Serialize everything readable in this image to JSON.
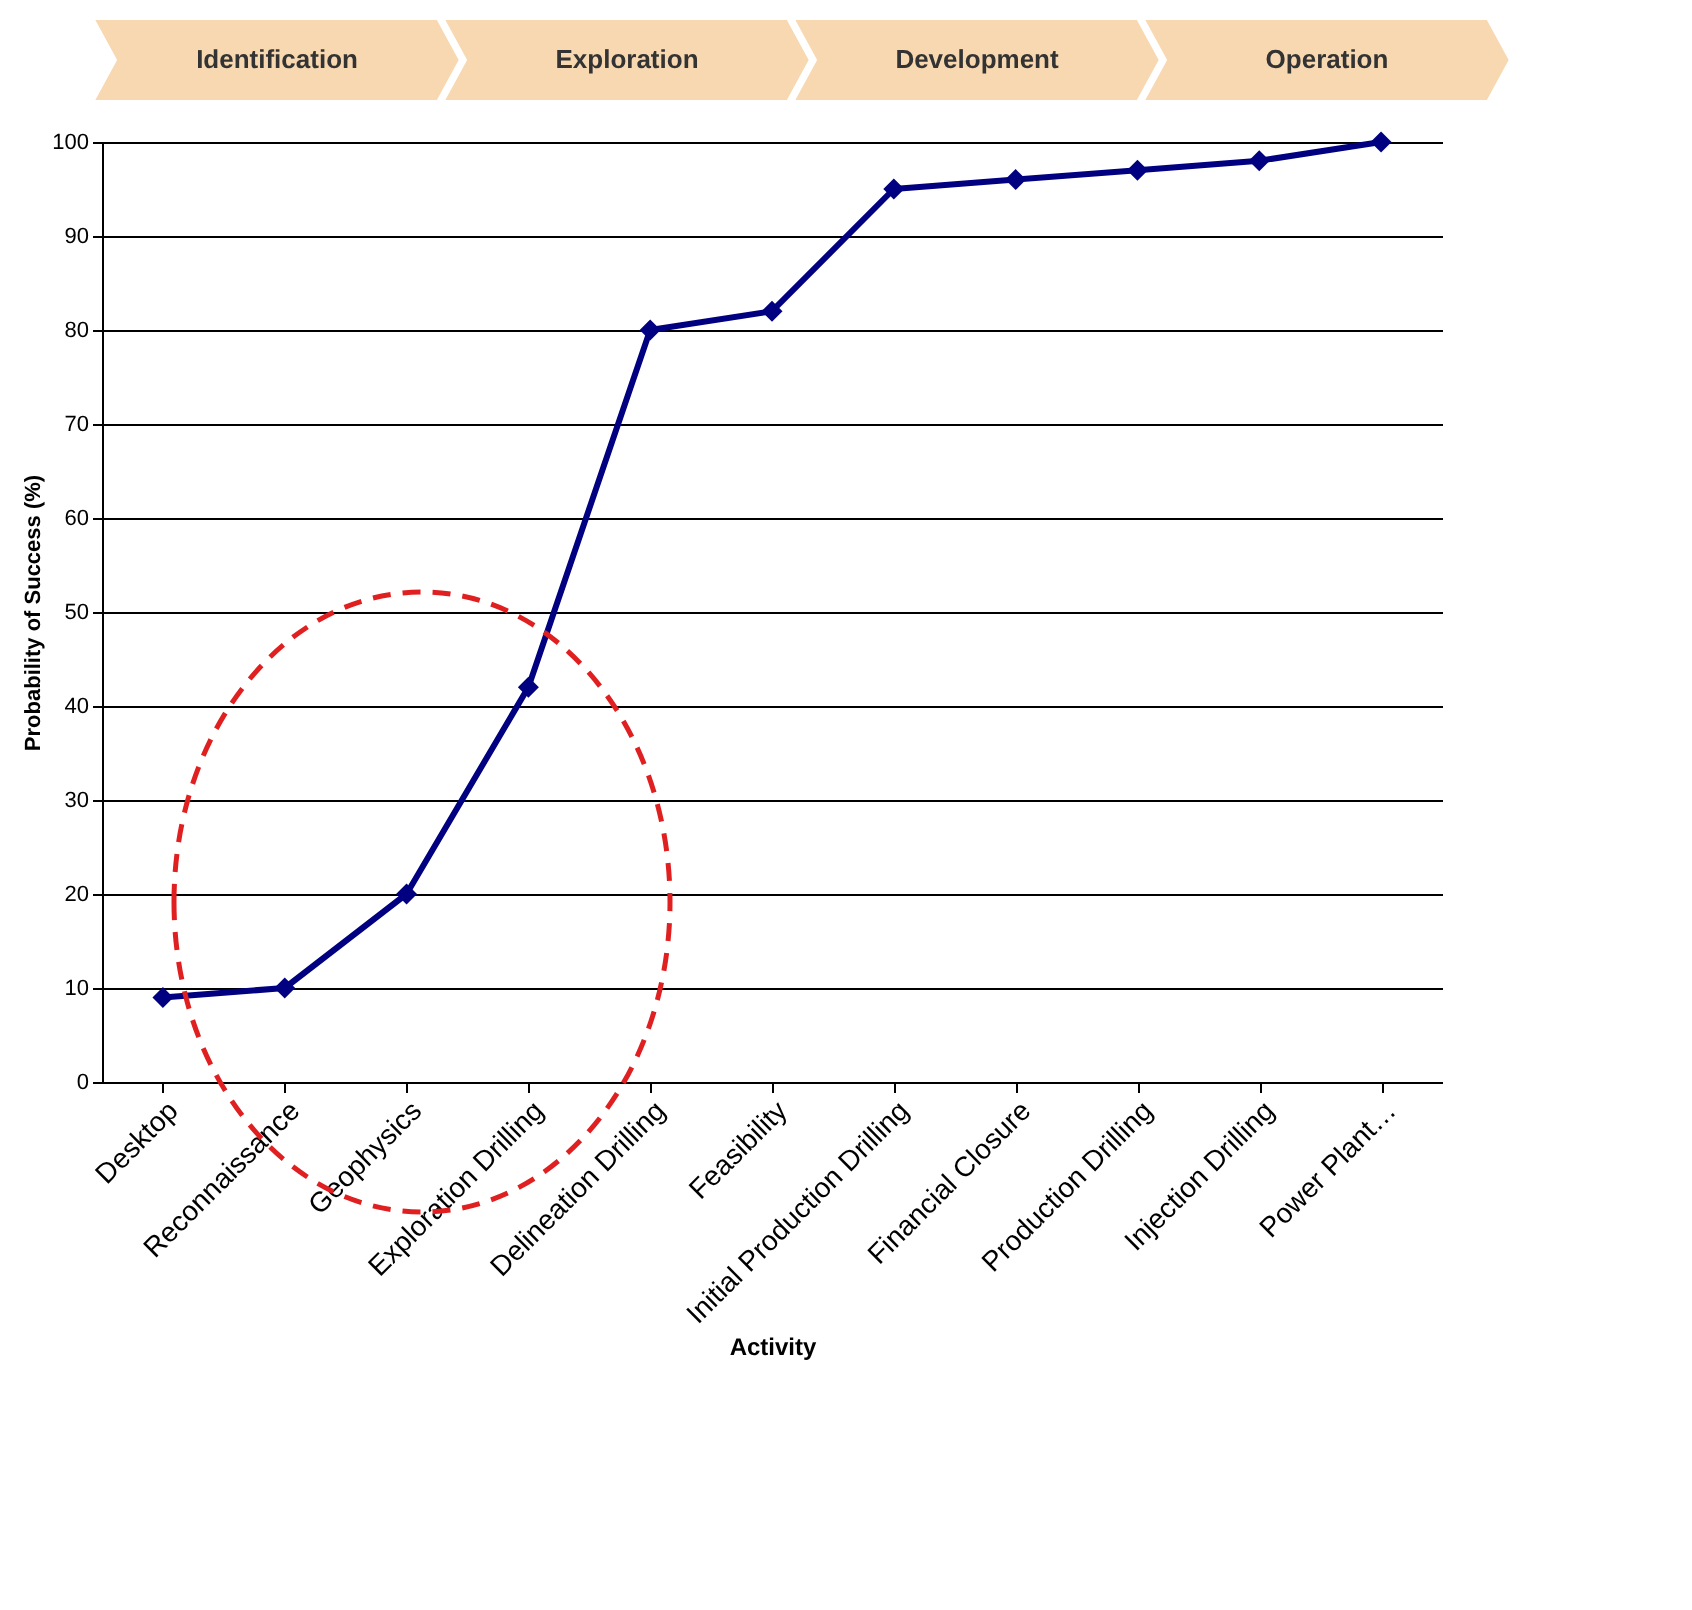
{
  "chart_data": {
    "type": "line",
    "categories": [
      "Desktop",
      "Reconnaissance",
      "Geophysics",
      "Exploration Drilling",
      "Delineation Drilling",
      "Feasibility",
      "Initial Production Drilling",
      "Financial Closure",
      "Production Drilling",
      "Injection Drilling",
      "Power Plant…"
    ],
    "series": [
      {
        "color": "#000080",
        "values": [
          9,
          10,
          20,
          42,
          80,
          82,
          95,
          96,
          97,
          98,
          100
        ]
      }
    ],
    "xlabel": "Activity",
    "ylabel": "Probability of Success (%)",
    "ylim": [
      0,
      100
    ],
    "yticks": [
      0,
      10,
      20,
      30,
      40,
      50,
      60,
      70,
      80,
      90,
      100
    ],
    "grid": "y",
    "marker": "diamond",
    "line_style": "solid",
    "annotations": [
      "Identification",
      "Exploration",
      "Development",
      "Operation"
    ]
  }
}
